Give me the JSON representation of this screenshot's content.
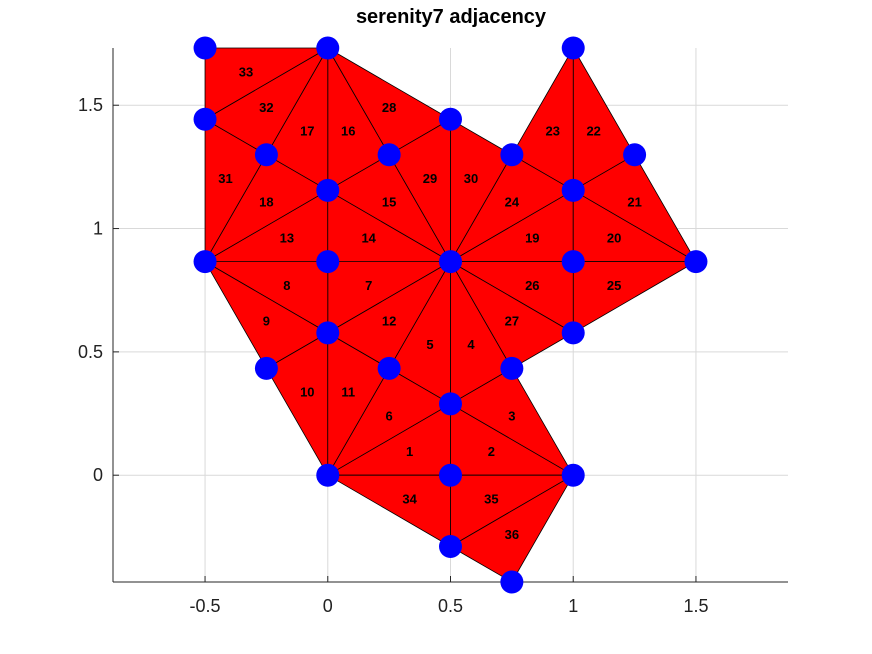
{
  "chart_data": {
    "type": "mesh",
    "title": "serenity7 adjacency",
    "xlabel": "",
    "ylabel": "",
    "xlim": [
      -0.875,
      1.875
    ],
    "ylim": [
      -0.433,
      1.732
    ],
    "grid": true,
    "xticks": [
      {
        "value": -0.5,
        "label": "-0.5"
      },
      {
        "value": 0,
        "label": "0"
      },
      {
        "value": 0.5,
        "label": "0.5"
      },
      {
        "value": 1,
        "label": "1"
      },
      {
        "value": 1.5,
        "label": "1.5"
      }
    ],
    "yticks": [
      {
        "value": 0,
        "label": "0"
      },
      {
        "value": 0.5,
        "label": "0.5"
      },
      {
        "value": 1,
        "label": "1"
      },
      {
        "value": 1.5,
        "label": "1.5"
      }
    ],
    "colors": {
      "triangle": "#ff0000",
      "edge": "#000000",
      "node": "#0000ff"
    },
    "nodes": [
      {
        "x": 0,
        "y": 0
      },
      {
        "x": 0.5,
        "y": 0
      },
      {
        "x": 1,
        "y": 0
      },
      {
        "x": 0.25,
        "y": 0.433
      },
      {
        "x": 0.75,
        "y": 0.433
      },
      {
        "x": 0.5,
        "y": 0.866
      },
      {
        "x": 0.5,
        "y": 0.289
      },
      {
        "x": 0,
        "y": 0.866
      },
      {
        "x": -0.25,
        "y": 0.433
      },
      {
        "x": 0,
        "y": 0.577
      },
      {
        "x": 1,
        "y": 0.866
      },
      {
        "x": 1.5,
        "y": 0.866
      },
      {
        "x": 1,
        "y": 0.577
      },
      {
        "x": 0.5,
        "y": 1.443
      },
      {
        "x": 0,
        "y": 1.732
      },
      {
        "x": 0,
        "y": 1.155
      },
      {
        "x": 0.25,
        "y": 1.299
      },
      {
        "x": -0.5,
        "y": 0.866
      },
      {
        "x": -0.25,
        "y": 1.299
      },
      {
        "x": 0.75,
        "y": 1.299
      },
      {
        "x": 1,
        "y": 1.732
      },
      {
        "x": 1,
        "y": 1.155
      },
      {
        "x": 1.25,
        "y": 1.299
      },
      {
        "x": -0.5,
        "y": 1.443
      },
      {
        "x": -0.5,
        "y": 1.732
      },
      {
        "x": 0.5,
        "y": -0.289
      },
      {
        "x": 0.75,
        "y": -0.433
      }
    ],
    "triangles": [
      {
        "label": "1",
        "v": [
          0,
          1,
          6
        ]
      },
      {
        "label": "2",
        "v": [
          1,
          2,
          6
        ]
      },
      {
        "label": "3",
        "v": [
          2,
          4,
          6
        ]
      },
      {
        "label": "4",
        "v": [
          4,
          5,
          6
        ]
      },
      {
        "label": "5",
        "v": [
          5,
          3,
          6
        ]
      },
      {
        "label": "6",
        "v": [
          3,
          0,
          6
        ]
      },
      {
        "label": "7",
        "v": [
          5,
          7,
          9
        ]
      },
      {
        "label": "8",
        "v": [
          7,
          17,
          9
        ]
      },
      {
        "label": "9",
        "v": [
          17,
          8,
          9
        ]
      },
      {
        "label": "10",
        "v": [
          8,
          0,
          9
        ]
      },
      {
        "label": "11",
        "v": [
          0,
          3,
          9
        ]
      },
      {
        "label": "12",
        "v": [
          3,
          5,
          9
        ]
      },
      {
        "label": "13",
        "v": [
          17,
          7,
          15
        ]
      },
      {
        "label": "14",
        "v": [
          7,
          5,
          15
        ]
      },
      {
        "label": "15",
        "v": [
          5,
          16,
          15
        ]
      },
      {
        "label": "16",
        "v": [
          16,
          14,
          15
        ]
      },
      {
        "label": "17",
        "v": [
          14,
          18,
          15
        ]
      },
      {
        "label": "18",
        "v": [
          18,
          17,
          15
        ]
      },
      {
        "label": "19",
        "v": [
          5,
          10,
          21
        ]
      },
      {
        "label": "20",
        "v": [
          10,
          11,
          21
        ]
      },
      {
        "label": "21",
        "v": [
          11,
          22,
          21
        ]
      },
      {
        "label": "22",
        "v": [
          22,
          20,
          21
        ]
      },
      {
        "label": "23",
        "v": [
          20,
          19,
          21
        ]
      },
      {
        "label": "24",
        "v": [
          19,
          5,
          21
        ]
      },
      {
        "label": "25",
        "v": [
          11,
          10,
          12
        ]
      },
      {
        "label": "26",
        "v": [
          10,
          5,
          12
        ]
      },
      {
        "label": "27",
        "v": [
          5,
          4,
          12
        ]
      },
      {
        "label": "28",
        "v": [
          14,
          13,
          16
        ]
      },
      {
        "label": "29",
        "v": [
          16,
          13,
          5
        ]
      },
      {
        "label": "30",
        "v": [
          13,
          19,
          5
        ]
      },
      {
        "label": "31",
        "v": [
          18,
          23,
          17
        ]
      },
      {
        "label": "32",
        "v": [
          23,
          18,
          14
        ]
      },
      {
        "label": "33",
        "v": [
          24,
          23,
          14
        ]
      },
      {
        "label": "34",
        "v": [
          0,
          25,
          1
        ]
      },
      {
        "label": "35",
        "v": [
          1,
          25,
          2
        ]
      },
      {
        "label": "36",
        "v": [
          25,
          26,
          2
        ]
      }
    ]
  }
}
